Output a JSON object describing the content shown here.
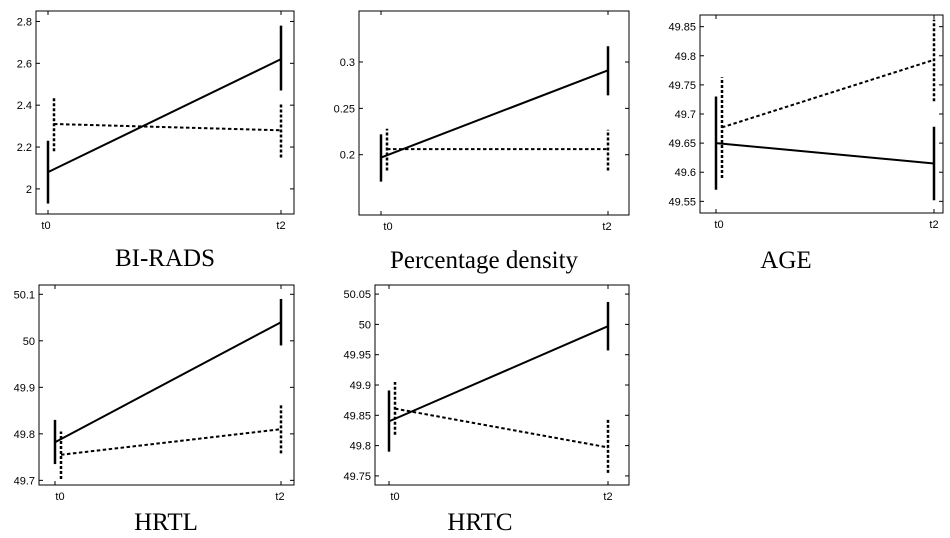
{
  "chart_data": [
    {
      "type": "line",
      "title": "BI-RADS",
      "x": [
        "t0",
        "t2"
      ],
      "ylim": [
        1.88,
        2.85
      ],
      "yticks": [
        2,
        2.2,
        2.4,
        2.6,
        2.8
      ],
      "ytick_labels": [
        "2",
        "2.2",
        "2.4",
        "2.6",
        "2.8"
      ],
      "series": [
        {
          "style": "solid",
          "values": [
            2.08,
            2.62
          ],
          "errors": [
            [
              1.93,
              2.23
            ],
            [
              2.47,
              2.78
            ]
          ]
        },
        {
          "style": "dashed",
          "values": [
            2.31,
            2.28
          ],
          "errors": [
            [
              2.18,
              2.44
            ],
            [
              2.15,
              2.41
            ]
          ]
        }
      ]
    },
    {
      "type": "line",
      "title": "Percentage density",
      "x": [
        "t0",
        "t2"
      ],
      "ylim": [
        0.135,
        0.355
      ],
      "yticks": [
        0.2,
        0.25,
        0.3
      ],
      "ytick_labels": [
        "0.2",
        "0.25",
        "0.3"
      ],
      "series": [
        {
          "style": "solid",
          "values": [
            0.197,
            0.291
          ],
          "errors": [
            [
              0.171,
              0.222
            ],
            [
              0.264,
              0.317
            ]
          ]
        },
        {
          "style": "dashed",
          "values": [
            0.206,
            0.206
          ],
          "errors": [
            [
              0.183,
              0.228
            ],
            [
              0.183,
              0.227
            ]
          ]
        }
      ]
    },
    {
      "type": "line",
      "title": "AGE",
      "x": [
        "t0",
        "t2"
      ],
      "ylim": [
        1.88,
        49.87
      ],
      "ylim_true": [
        49.53,
        49.87
      ],
      "yticks": [
        49.55,
        49.6,
        49.65,
        49.7,
        49.75,
        49.8,
        49.85
      ],
      "ytick_labels": [
        "49.55",
        "49.6",
        "49.65",
        "49.7",
        "49.75",
        "49.8",
        "49.85"
      ],
      "series": [
        {
          "style": "solid",
          "values": [
            49.65,
            49.615
          ],
          "errors": [
            [
              49.57,
              49.73
            ],
            [
              49.552,
              49.678
            ]
          ]
        },
        {
          "style": "dashed",
          "values": [
            49.677,
            49.793
          ],
          "errors": [
            [
              49.59,
              49.763
            ],
            [
              49.722,
              49.862
            ]
          ]
        }
      ]
    },
    {
      "type": "line",
      "title": "HRTL",
      "x": [
        "t0",
        "t2"
      ],
      "ylim": [
        49.69,
        50.12
      ],
      "yticks": [
        49.7,
        49.8,
        49.9,
        50,
        50.1
      ],
      "ytick_labels": [
        "49.7",
        "49.8",
        "49.9",
        "50",
        "50.1"
      ],
      "series": [
        {
          "style": "solid",
          "values": [
            49.782,
            50.04
          ],
          "errors": [
            [
              49.735,
              49.83
            ],
            [
              49.99,
              50.09
            ]
          ]
        },
        {
          "style": "dashed",
          "values": [
            49.755,
            49.81
          ],
          "errors": [
            [
              49.703,
              49.805
            ],
            [
              49.758,
              49.862
            ]
          ]
        }
      ]
    },
    {
      "type": "line",
      "title": "HRTC",
      "x": [
        "t0",
        "t2"
      ],
      "ylim": [
        49.735,
        50.065
      ],
      "yticks": [
        49.75,
        49.8,
        49.85,
        49.9,
        49.95,
        50,
        50.05
      ],
      "ytick_labels": [
        "49.75",
        "49.8",
        "49.85",
        "49.9",
        "49.95",
        "50",
        "50.05"
      ],
      "series": [
        {
          "style": "solid",
          "values": [
            49.84,
            49.997
          ],
          "errors": [
            [
              49.79,
              49.891
            ],
            [
              49.957,
              50.037
            ]
          ]
        },
        {
          "style": "dashed",
          "values": [
            49.861,
            49.797
          ],
          "errors": [
            [
              49.818,
              49.905
            ],
            [
              49.755,
              49.843
            ]
          ]
        }
      ]
    }
  ]
}
